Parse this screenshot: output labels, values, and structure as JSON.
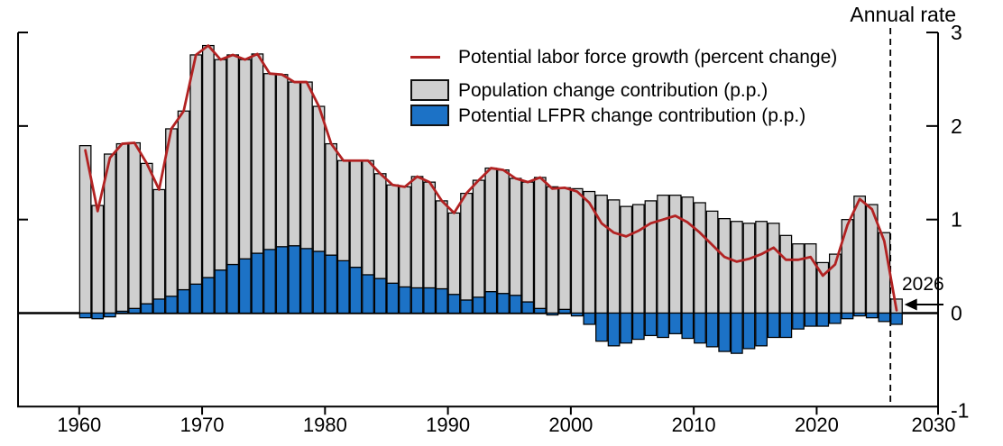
{
  "chart_data": {
    "type": "bar",
    "right_axis_label": "Annual rate",
    "years": [
      1960,
      1961,
      1962,
      1963,
      1964,
      1965,
      1966,
      1967,
      1968,
      1969,
      1970,
      1971,
      1972,
      1973,
      1974,
      1975,
      1976,
      1977,
      1978,
      1979,
      1980,
      1981,
      1982,
      1983,
      1984,
      1985,
      1986,
      1987,
      1988,
      1989,
      1990,
      1991,
      1992,
      1993,
      1994,
      1995,
      1996,
      1997,
      1998,
      1999,
      2000,
      2001,
      2002,
      2003,
      2004,
      2005,
      2006,
      2007,
      2008,
      2009,
      2010,
      2011,
      2012,
      2013,
      2014,
      2015,
      2016,
      2017,
      2018,
      2019,
      2020,
      2021,
      2022,
      2023,
      2024,
      2025,
      2026
    ],
    "series": [
      {
        "name": "Potential labor force growth (percent change)",
        "type": "line",
        "color": "#b22222",
        "values": [
          1.74,
          1.09,
          1.66,
          1.81,
          1.82,
          1.6,
          1.32,
          1.97,
          2.16,
          2.76,
          2.86,
          2.71,
          2.76,
          2.71,
          2.77,
          2.56,
          2.55,
          2.47,
          2.47,
          2.21,
          1.81,
          1.63,
          1.63,
          1.63,
          1.49,
          1.37,
          1.35,
          1.46,
          1.4,
          1.2,
          1.07,
          1.28,
          1.42,
          1.55,
          1.53,
          1.44,
          1.4,
          1.45,
          1.33,
          1.34,
          1.3,
          1.18,
          0.96,
          0.86,
          0.82,
          0.88,
          0.96,
          1.0,
          1.04,
          0.97,
          0.86,
          0.73,
          0.6,
          0.55,
          0.58,
          0.63,
          0.7,
          0.57,
          0.57,
          0.6,
          0.4,
          0.52,
          0.94,
          1.22,
          1.11,
          0.77,
          0.03
        ]
      },
      {
        "name": "Population change contribution (p.p.)",
        "type": "bar",
        "color": "#cfcfcf",
        "values": [
          1.79,
          1.15,
          1.7,
          1.79,
          1.77,
          1.5,
          1.17,
          1.79,
          1.91,
          2.45,
          2.48,
          2.25,
          2.24,
          2.13,
          2.13,
          1.88,
          1.84,
          1.75,
          1.78,
          1.55,
          1.19,
          1.07,
          1.14,
          1.22,
          1.12,
          1.05,
          1.07,
          1.19,
          1.13,
          0.94,
          0.87,
          1.14,
          1.25,
          1.32,
          1.32,
          1.25,
          1.28,
          1.4,
          1.35,
          1.3,
          1.33,
          1.3,
          1.26,
          1.21,
          1.14,
          1.16,
          1.2,
          1.26,
          1.26,
          1.24,
          1.18,
          1.09,
          1.01,
          0.98,
          0.96,
          0.98,
          0.96,
          0.83,
          0.74,
          0.74,
          0.54,
          0.63,
          1.0,
          1.25,
          1.16,
          0.86,
          0.15
        ]
      },
      {
        "name": "Potential LFPR change contribution (p.p.)",
        "type": "bar",
        "color": "#1c72c6",
        "values": [
          -0.05,
          -0.06,
          -0.04,
          0.02,
          0.05,
          0.1,
          0.15,
          0.18,
          0.25,
          0.31,
          0.38,
          0.46,
          0.52,
          0.58,
          0.64,
          0.68,
          0.71,
          0.72,
          0.69,
          0.66,
          0.62,
          0.56,
          0.49,
          0.41,
          0.37,
          0.32,
          0.28,
          0.27,
          0.27,
          0.26,
          0.2,
          0.14,
          0.17,
          0.23,
          0.21,
          0.19,
          0.12,
          0.05,
          -0.02,
          0.04,
          -0.03,
          -0.12,
          -0.3,
          -0.35,
          -0.32,
          -0.28,
          -0.24,
          -0.26,
          -0.22,
          -0.27,
          -0.32,
          -0.36,
          -0.41,
          -0.43,
          -0.38,
          -0.35,
          -0.26,
          -0.26,
          -0.17,
          -0.14,
          -0.14,
          -0.11,
          -0.06,
          -0.03,
          -0.05,
          -0.09,
          -0.12
        ]
      }
    ],
    "xticks": [
      1960,
      1970,
      1980,
      1990,
      2000,
      2010,
      2020,
      2030
    ],
    "yticks": [
      -1,
      0,
      1,
      2,
      3
    ],
    "ylim": [
      -1,
      3
    ],
    "grid": false,
    "legend_position": "upper-center-left",
    "forecast_divider_year": 2026,
    "annotation": {
      "label": "2026",
      "points_to_year": 2026
    },
    "colors": {
      "axis": "#000000",
      "background": "#ffffff"
    }
  }
}
